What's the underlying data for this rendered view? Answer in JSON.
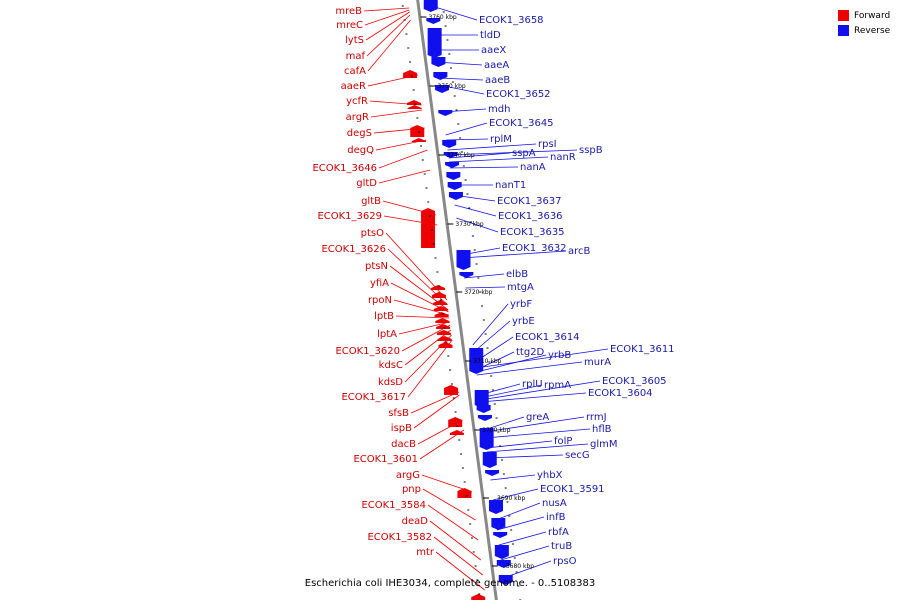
{
  "caption": "Escherichia coli IHE3034, complete genome. - 0..5108383",
  "legend": [
    {
      "label": "Forward",
      "color": "#ee0000"
    },
    {
      "label": "Reverse",
      "color": "#1010ee"
    }
  ],
  "colors": {
    "forward": "#ee0000",
    "reverse": "#1010ee",
    "forward_label": "#cc0000",
    "reverse_label": "#1a1aa6",
    "backbone": "#888888"
  },
  "scale_marks": [
    "3760 kbp",
    "3750 kbp",
    "3740 kbp",
    "3730 kbp",
    "3720 kbp",
    "3710 kbp",
    "3700 kbp",
    "3690 kbp",
    "3680 kbp"
  ],
  "forward_genes": [
    "mreB",
    "mreC",
    "lytS",
    "maf",
    "cafA",
    "aaeR",
    "ycfR",
    "argR",
    "degS",
    "degQ",
    "ECOK1_3646",
    "gltD",
    "gltB",
    "ECOK1_3629",
    "ptsO",
    "ECOK1_3626",
    "ptsN",
    "yfiA",
    "rpoN",
    "lptB",
    "lptA",
    "ECOK1_3620",
    "kdsC",
    "kdsD",
    "ECOK1_3617",
    "sfsB",
    "ispB",
    "dacB",
    "ECOK1_3601",
    "argG",
    "pnp",
    "ECOK1_3584",
    "deaD",
    "ECOK1_3582",
    "mtr"
  ],
  "reverse_genes": [
    "ECOK1_3658",
    "tldD",
    "aaeX",
    "aaeA",
    "aaeB",
    "ECOK1_3652",
    "mdh",
    "ECOK1_3645",
    "rplM",
    "rpsI",
    "sspB",
    "sspA",
    "nanR",
    "nanA",
    "nanT1",
    "ECOK1_3637",
    "ECOK1_3636",
    "ECOK1_3635",
    "ECOK1_3632",
    "arcB",
    "elbB",
    "mtgA",
    "yrbF",
    "yrbE",
    "ECOK1_3614",
    "ECOK1_3611",
    "ttg2D",
    "yrbB",
    "murA",
    "rplU",
    "rpmA",
    "ECOK1_3605",
    "ECOK1_3604",
    "greA",
    "rrmJ",
    "hflB",
    "folP",
    "glmM",
    "secG",
    "yhbX",
    "ECOK1_3591",
    "nusA",
    "infB",
    "rbfA",
    "truB",
    "rpsO"
  ]
}
